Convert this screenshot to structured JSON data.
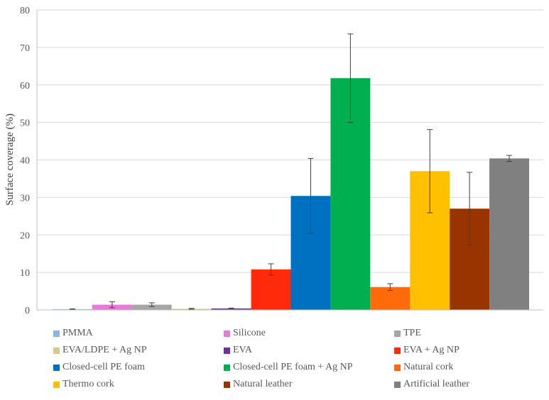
{
  "chart_data": {
    "type": "bar",
    "title": "",
    "xlabel": "",
    "ylabel": "Surface coverage (%)",
    "ylim": [
      0,
      80
    ],
    "yticks": [
      0,
      10,
      20,
      30,
      40,
      50,
      60,
      70,
      80
    ],
    "grid": true,
    "legend_position": "bottom",
    "series": [
      {
        "name": "PMMA",
        "value": 0.2,
        "error": 0.1,
        "color": "#8eb4e3"
      },
      {
        "name": "Silicone",
        "value": 1.4,
        "error": 0.8,
        "color": "#e87ad9"
      },
      {
        "name": "TPE",
        "value": 1.4,
        "error": 0.5,
        "color": "#a6a6a6"
      },
      {
        "name": "EVA/LDPE + Ag NP",
        "value": 0.3,
        "error": 0.1,
        "color": "#d6c98a"
      },
      {
        "name": "EVA",
        "value": 0.4,
        "error": 0.1,
        "color": "#7030a0"
      },
      {
        "name": "EVA + Ag NP",
        "value": 10.8,
        "error": 1.5,
        "color": "#ff2a0a"
      },
      {
        "name": "Closed-cell PE foam",
        "value": 30.4,
        "error": 10.0,
        "color": "#0070c0"
      },
      {
        "name": "Closed-cell PE foam + Ag NP",
        "value": 61.8,
        "error": 11.8,
        "color": "#00b050"
      },
      {
        "name": "Natural cork",
        "value": 6.1,
        "error": 0.9,
        "color": "#ff6a0a"
      },
      {
        "name": "Thermo cork",
        "value": 37.0,
        "error": 11.1,
        "color": "#ffc000"
      },
      {
        "name": "Natural leather",
        "value": 27.0,
        "error": 9.7,
        "color": "#993300"
      },
      {
        "name": "Artificial leather",
        "value": 40.4,
        "error": 0.8,
        "color": "#808080"
      }
    ]
  }
}
